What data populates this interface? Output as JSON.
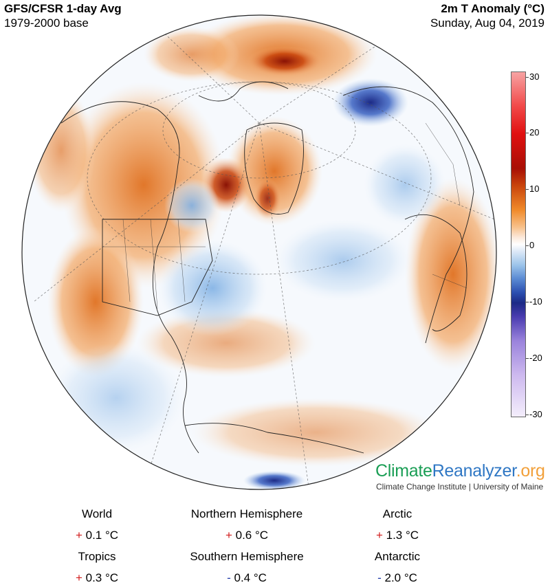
{
  "header": {
    "left_title": "GFS/CFSR 1-day Avg",
    "left_subtitle": "1979-2000 base",
    "right_title": "2m T Anomaly (°C)",
    "right_subtitle": "Sunday, Aug 04, 2019"
  },
  "colorbar": {
    "ticks": [
      "30",
      "20",
      "10",
      "0",
      "-10",
      "-20",
      "-30"
    ],
    "range": [
      -30,
      30
    ]
  },
  "brand": {
    "part1": "Climate",
    "part2": "Reanalyzer",
    "part3": ".org",
    "subtitle": "Climate Change Institute | University of Maine"
  },
  "stats": [
    {
      "label": "World",
      "sign": "+",
      "value": "0.1 °C"
    },
    {
      "label": "Northern Hemisphere",
      "sign": "+",
      "value": "0.6 °C"
    },
    {
      "label": "Arctic",
      "sign": "+",
      "value": "1.3 °C"
    },
    {
      "label": "Tropics",
      "sign": "+",
      "value": "0.3 °C"
    },
    {
      "label": "Southern Hemisphere",
      "sign": "-",
      "value": "0.4 °C"
    },
    {
      "label": "Antarctic",
      "sign": "-",
      "value": "2.0 °C"
    }
  ],
  "colors": {
    "warm_strong": "#a80f05",
    "warm": "#f08a2a",
    "warm_light": "#f7c18b",
    "neutral": "#ffffff",
    "cool_light": "#9cc4ea",
    "cool_strong": "#1c2a86",
    "plus_sign": "#d11a1a",
    "minus_sign": "#1d39a8"
  }
}
